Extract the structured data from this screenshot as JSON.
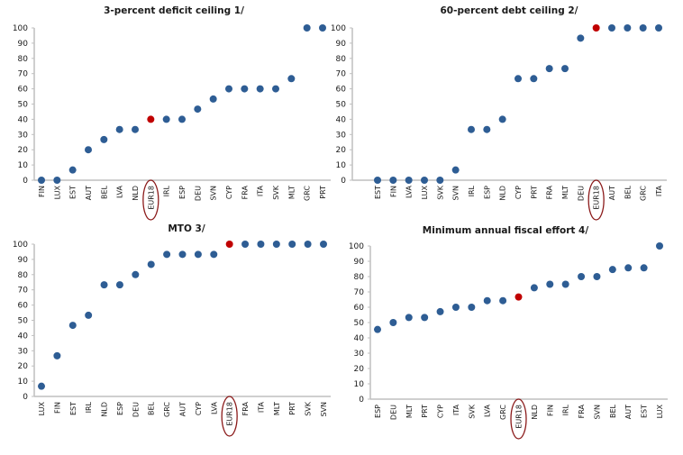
{
  "colors": {
    "point": "#2e5d94",
    "highlight_point": "#c00000",
    "highlight_circle": "#8b1a1a"
  },
  "chart_data": [
    {
      "type": "scatter",
      "title": "3-percent deficit ceiling 1/",
      "xlabel": "",
      "ylabel": "",
      "ylim": [
        0,
        100
      ],
      "yticks": [
        0,
        10,
        20,
        30,
        40,
        50,
        60,
        70,
        80,
        90,
        100
      ],
      "grid": false,
      "highlight": "EUR18",
      "categories": [
        "FIN",
        "LUX",
        "EST",
        "AUT",
        "BEL",
        "LVA",
        "NLD",
        "EUR18",
        "IRL",
        "ESP",
        "DEU",
        "SVN",
        "CYP",
        "FRA",
        "ITA",
        "SVK",
        "MLT",
        "GRC",
        "PRT"
      ],
      "values": [
        0,
        0,
        6.7,
        20,
        26.7,
        33.3,
        33.3,
        40,
        40,
        40,
        46.7,
        53.3,
        60,
        60,
        60,
        60,
        66.7,
        100,
        100
      ]
    },
    {
      "type": "scatter",
      "title": "60-percent debt ceiling 2/",
      "xlabel": "",
      "ylabel": "",
      "ylim": [
        0,
        100
      ],
      "yticks": [
        0,
        10,
        20,
        30,
        40,
        50,
        60,
        70,
        80,
        90,
        100
      ],
      "grid": false,
      "highlight": "EUR18",
      "categories": [
        "EST",
        "FIN",
        "LVA",
        "LUX",
        "SVK",
        "SVN",
        "IRL",
        "ESP",
        "NLD",
        "CYP",
        "PRT",
        "FRA",
        "MLT",
        "DEU",
        "EUR18",
        "AUT",
        "BEL",
        "GRC",
        "ITA"
      ],
      "values": [
        0,
        0,
        0,
        0,
        0,
        6.7,
        33.3,
        33.3,
        40,
        66.7,
        66.7,
        73.3,
        73.3,
        93.3,
        100,
        100,
        100,
        100,
        100
      ]
    },
    {
      "type": "scatter",
      "title": "MTO 3/",
      "xlabel": "",
      "ylabel": "",
      "ylim": [
        0,
        100
      ],
      "yticks": [
        0,
        10,
        20,
        30,
        40,
        50,
        60,
        70,
        80,
        90,
        100
      ],
      "grid": false,
      "highlight": "EUR18",
      "categories": [
        "LUX",
        "FIN",
        "EST",
        "IRL",
        "NLD",
        "ESP",
        "DEU",
        "BEL",
        "GRC",
        "AUT",
        "CYP",
        "LVA",
        "EUR18",
        "FRA",
        "ITA",
        "MLT",
        "PRT",
        "SVK",
        "SVN"
      ],
      "values": [
        6.7,
        26.7,
        46.7,
        53.3,
        73.3,
        73.3,
        80,
        86.7,
        93.3,
        93.3,
        93.3,
        93.3,
        100,
        100,
        100,
        100,
        100,
        100,
        100
      ]
    },
    {
      "type": "scatter",
      "title": "Minimum annual fiscal effort 4/",
      "xlabel": "",
      "ylabel": "",
      "ylim": [
        0,
        100
      ],
      "yticks": [
        0,
        10,
        20,
        30,
        40,
        50,
        60,
        70,
        80,
        90,
        100
      ],
      "grid": false,
      "highlight": "EUR18",
      "categories": [
        "ESP",
        "DEU",
        "MLT",
        "PRT",
        "CYP",
        "ITA",
        "SVK",
        "LVA",
        "GRC",
        "EUR18",
        "NLD",
        "FIN",
        "IRL",
        "FRA",
        "SVN",
        "BEL",
        "AUT",
        "EST",
        "LUX"
      ],
      "values": [
        45.5,
        50,
        53.3,
        53.3,
        57.1,
        60,
        60,
        64.3,
        64.3,
        66.7,
        72.7,
        75,
        75,
        80,
        80,
        84.6,
        85.7,
        85.7,
        100
      ]
    }
  ]
}
